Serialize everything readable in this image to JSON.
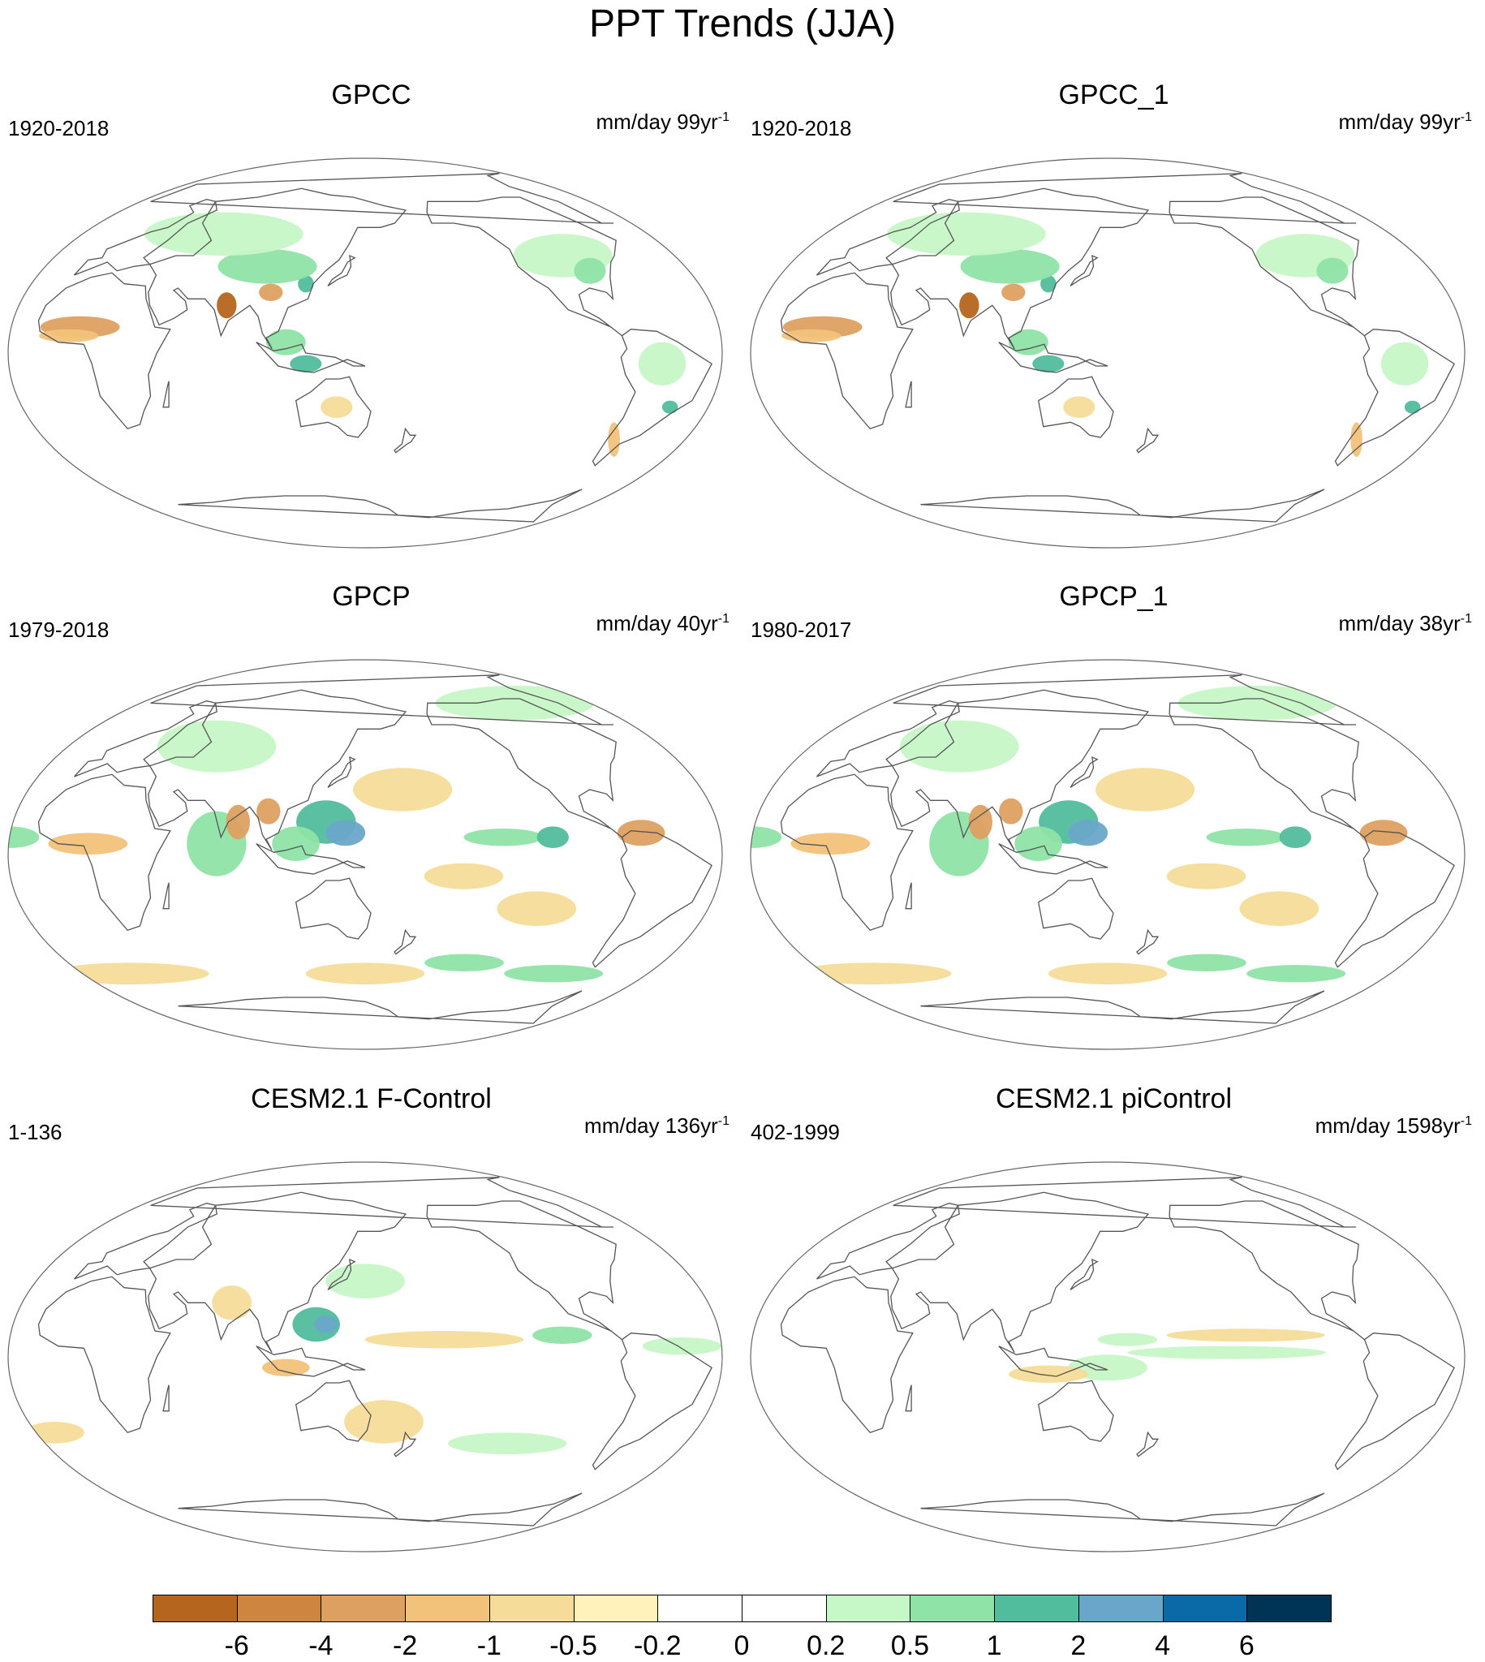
{
  "title": "PPT Trends (JJA)",
  "panels": [
    {
      "title": "GPCC",
      "period": "1920-2018",
      "units": "mm/day 99yr",
      "units_sup": "-1",
      "pattern": [
        {
          "lon": 100,
          "lat": 28,
          "rx": 6,
          "ry": 4,
          "cls": -3
        },
        {
          "lon": 78,
          "lat": 22,
          "rx": 5,
          "ry": 6,
          "cls": -4
        },
        {
          "lon": 118,
          "lat": 32,
          "rx": 4,
          "ry": 4,
          "cls": 3
        },
        {
          "lon": 95,
          "lat": 40,
          "rx": 25,
          "ry": 8,
          "cls": 2
        },
        {
          "lon": 110,
          "lat": 5,
          "rx": 10,
          "ry": 6,
          "cls": 2
        },
        {
          "lon": 120,
          "lat": -5,
          "rx": 8,
          "ry": 4,
          "cls": 3
        },
        {
          "lon": 60,
          "lat": 55,
          "rx": 40,
          "ry": 10,
          "cls": 1
        },
        {
          "lon": -95,
          "lat": 45,
          "rx": 25,
          "ry": 10,
          "cls": 1
        },
        {
          "lon": -85,
          "lat": 38,
          "rx": 8,
          "ry": 6,
          "cls": 2
        },
        {
          "lon": 5,
          "lat": 12,
          "rx": 20,
          "ry": 5,
          "cls": -3
        },
        {
          "lon": 0,
          "lat": 8,
          "rx": 15,
          "ry": 3,
          "cls": -2
        },
        {
          "lon": -60,
          "lat": -5,
          "rx": 12,
          "ry": 10,
          "cls": 1
        },
        {
          "lon": -50,
          "lat": -25,
          "rx": 4,
          "ry": 3,
          "cls": 3
        },
        {
          "lon": -70,
          "lat": -40,
          "rx": 3,
          "ry": 8,
          "cls": -2
        },
        {
          "lon": 135,
          "lat": -25,
          "rx": 8,
          "ry": 5,
          "cls": -1
        }
      ]
    },
    {
      "title": "GPCC_1",
      "period": "1920-2018",
      "units": "mm/day 99yr",
      "units_sup": "-1",
      "pattern": [
        {
          "lon": 100,
          "lat": 28,
          "rx": 6,
          "ry": 4,
          "cls": -3
        },
        {
          "lon": 78,
          "lat": 22,
          "rx": 5,
          "ry": 6,
          "cls": -4
        },
        {
          "lon": 118,
          "lat": 32,
          "rx": 4,
          "ry": 4,
          "cls": 3
        },
        {
          "lon": 95,
          "lat": 40,
          "rx": 25,
          "ry": 8,
          "cls": 2
        },
        {
          "lon": 110,
          "lat": 5,
          "rx": 10,
          "ry": 6,
          "cls": 2
        },
        {
          "lon": 120,
          "lat": -5,
          "rx": 8,
          "ry": 4,
          "cls": 3
        },
        {
          "lon": 60,
          "lat": 55,
          "rx": 40,
          "ry": 10,
          "cls": 1
        },
        {
          "lon": -95,
          "lat": 45,
          "rx": 25,
          "ry": 10,
          "cls": 1
        },
        {
          "lon": -85,
          "lat": 38,
          "rx": 8,
          "ry": 6,
          "cls": 2
        },
        {
          "lon": 5,
          "lat": 12,
          "rx": 20,
          "ry": 5,
          "cls": -3
        },
        {
          "lon": 0,
          "lat": 8,
          "rx": 15,
          "ry": 3,
          "cls": -2
        },
        {
          "lon": -60,
          "lat": -5,
          "rx": 12,
          "ry": 10,
          "cls": 1
        },
        {
          "lon": -50,
          "lat": -25,
          "rx": 4,
          "ry": 3,
          "cls": 3
        },
        {
          "lon": -70,
          "lat": -40,
          "rx": 3,
          "ry": 8,
          "cls": -2
        },
        {
          "lon": 135,
          "lat": -25,
          "rx": 8,
          "ry": 5,
          "cls": -1
        }
      ]
    },
    {
      "title": "GPCP",
      "period": "1979-2018",
      "units": "mm/day 40yr",
      "units_sup": "-1",
      "pattern": [
        {
          "lon": 75,
          "lat": 5,
          "rx": 15,
          "ry": 15,
          "cls": 2
        },
        {
          "lon": 85,
          "lat": 15,
          "rx": 6,
          "ry": 8,
          "cls": -3
        },
        {
          "lon": 100,
          "lat": 20,
          "rx": 6,
          "ry": 6,
          "cls": -3
        },
        {
          "lon": 130,
          "lat": 15,
          "rx": 15,
          "ry": 10,
          "cls": 3
        },
        {
          "lon": 115,
          "lat": 5,
          "rx": 12,
          "ry": 8,
          "cls": 2
        },
        {
          "lon": 140,
          "lat": 10,
          "rx": 10,
          "ry": 6,
          "cls": 4
        },
        {
          "lon": -140,
          "lat": 8,
          "rx": 20,
          "ry": 4,
          "cls": 2
        },
        {
          "lon": -115,
          "lat": 8,
          "rx": 8,
          "ry": 5,
          "cls": 3
        },
        {
          "lon": -70,
          "lat": 10,
          "rx": 12,
          "ry": 6,
          "cls": -3
        },
        {
          "lon": -30,
          "lat": 8,
          "rx": 15,
          "ry": 5,
          "cls": 2
        },
        {
          "lon": 10,
          "lat": 5,
          "rx": 20,
          "ry": 5,
          "cls": -2
        },
        {
          "lon": 170,
          "lat": 30,
          "rx": 25,
          "ry": 10,
          "cls": -1
        },
        {
          "lon": -160,
          "lat": -10,
          "rx": 20,
          "ry": 6,
          "cls": -1
        },
        {
          "lon": -120,
          "lat": -25,
          "rx": 20,
          "ry": 8,
          "cls": -1
        },
        {
          "lon": -150,
          "lat": -50,
          "rx": 20,
          "ry": 4,
          "cls": 2
        },
        {
          "lon": -90,
          "lat": -55,
          "rx": 25,
          "ry": 4,
          "cls": 2
        },
        {
          "lon": 150,
          "lat": -55,
          "rx": 30,
          "ry": 5,
          "cls": -1
        },
        {
          "lon": 0,
          "lat": -55,
          "rx": 40,
          "ry": 5,
          "cls": -1
        },
        {
          "lon": -90,
          "lat": 70,
          "rx": 40,
          "ry": 8,
          "cls": 1
        },
        {
          "lon": 60,
          "lat": 50,
          "rx": 30,
          "ry": 12,
          "cls": 1
        }
      ]
    },
    {
      "title": "GPCP_1",
      "period": "1980-2017",
      "units": "mm/day 38yr",
      "units_sup": "-1",
      "pattern": [
        {
          "lon": 75,
          "lat": 5,
          "rx": 15,
          "ry": 15,
          "cls": 2
        },
        {
          "lon": 85,
          "lat": 15,
          "rx": 6,
          "ry": 8,
          "cls": -3
        },
        {
          "lon": 100,
          "lat": 20,
          "rx": 6,
          "ry": 6,
          "cls": -3
        },
        {
          "lon": 130,
          "lat": 15,
          "rx": 15,
          "ry": 10,
          "cls": 3
        },
        {
          "lon": 115,
          "lat": 5,
          "rx": 12,
          "ry": 8,
          "cls": 2
        },
        {
          "lon": 140,
          "lat": 10,
          "rx": 10,
          "ry": 6,
          "cls": 4
        },
        {
          "lon": -140,
          "lat": 8,
          "rx": 20,
          "ry": 4,
          "cls": 2
        },
        {
          "lon": -115,
          "lat": 8,
          "rx": 8,
          "ry": 5,
          "cls": 3
        },
        {
          "lon": -70,
          "lat": 10,
          "rx": 12,
          "ry": 6,
          "cls": -3
        },
        {
          "lon": -30,
          "lat": 8,
          "rx": 15,
          "ry": 5,
          "cls": 2
        },
        {
          "lon": 10,
          "lat": 5,
          "rx": 20,
          "ry": 5,
          "cls": -2
        },
        {
          "lon": 170,
          "lat": 30,
          "rx": 25,
          "ry": 10,
          "cls": -1
        },
        {
          "lon": -160,
          "lat": -10,
          "rx": 20,
          "ry": 6,
          "cls": -1
        },
        {
          "lon": -120,
          "lat": -25,
          "rx": 20,
          "ry": 8,
          "cls": -1
        },
        {
          "lon": -150,
          "lat": -50,
          "rx": 20,
          "ry": 4,
          "cls": 2
        },
        {
          "lon": -90,
          "lat": -55,
          "rx": 25,
          "ry": 4,
          "cls": 2
        },
        {
          "lon": 150,
          "lat": -55,
          "rx": 30,
          "ry": 5,
          "cls": -1
        },
        {
          "lon": 0,
          "lat": -55,
          "rx": 40,
          "ry": 5,
          "cls": -1
        },
        {
          "lon": -90,
          "lat": 70,
          "rx": 40,
          "ry": 8,
          "cls": 1
        },
        {
          "lon": 60,
          "lat": 50,
          "rx": 30,
          "ry": 12,
          "cls": 1
        }
      ]
    },
    {
      "title": "CESM2.1 F-Control",
      "period": "1-136",
      "units": "mm/day 136yr",
      "units_sup": "-1",
      "pattern": [
        {
          "lon": 125,
          "lat": 15,
          "rx": 12,
          "ry": 8,
          "cls": 3
        },
        {
          "lon": 130,
          "lat": 15,
          "rx": 6,
          "ry": 4,
          "cls": 4
        },
        {
          "lon": 80,
          "lat": 25,
          "rx": 10,
          "ry": 8,
          "cls": -1
        },
        {
          "lon": 110,
          "lat": -5,
          "rx": 12,
          "ry": 4,
          "cls": -2
        },
        {
          "lon": -170,
          "lat": 8,
          "rx": 40,
          "ry": 4,
          "cls": -1
        },
        {
          "lon": -110,
          "lat": 10,
          "rx": 15,
          "ry": 4,
          "cls": 2
        },
        {
          "lon": -50,
          "lat": 5,
          "rx": 20,
          "ry": 4,
          "cls": 1
        },
        {
          "lon": 150,
          "lat": 35,
          "rx": 20,
          "ry": 8,
          "cls": 1
        },
        {
          "lon": 160,
          "lat": -30,
          "rx": 20,
          "ry": 10,
          "cls": -1
        },
        {
          "lon": -20,
          "lat": -35,
          "rx": 15,
          "ry": 5,
          "cls": -1
        },
        {
          "lon": -130,
          "lat": -40,
          "rx": 30,
          "ry": 5,
          "cls": 1
        }
      ]
    },
    {
      "title": "CESM2.1 piControl",
      "period": "402-1999",
      "units": "mm/day 1598yr",
      "units_sup": "-1",
      "pattern": [
        {
          "lon": -150,
          "lat": 2,
          "rx": 50,
          "ry": 3,
          "cls": 1
        },
        {
          "lon": -140,
          "lat": 10,
          "rx": 40,
          "ry": 3,
          "cls": -1
        },
        {
          "lon": 150,
          "lat": -5,
          "rx": 20,
          "ry": 6,
          "cls": 1
        },
        {
          "lon": 120,
          "lat": -8,
          "rx": 20,
          "ry": 4,
          "cls": -1
        },
        {
          "lon": 160,
          "lat": 8,
          "rx": 15,
          "ry": 3,
          "cls": 1
        }
      ]
    }
  ],
  "colorbar": {
    "labels": [
      "-6",
      "-4",
      "-2",
      "-1",
      "-0.5",
      "-0.2",
      "0",
      "0.2",
      "0.5",
      "1",
      "2",
      "4",
      "6"
    ],
    "colors": [
      "#b5651d",
      "#cd853f",
      "#dea060",
      "#f2c27a",
      "#f5dd99",
      "#fff2bb",
      "#ffffff",
      "#ffffff",
      "#c6f7c6",
      "#8fe3a6",
      "#52bd9c",
      "#6aa6c9",
      "#0a6aa8",
      "#003457"
    ]
  },
  "class_colors": {
    "-4": "#b5651d",
    "-3": "#dea060",
    "-2": "#f2c27a",
    "-1": "#f5dd99",
    "1": "#c6f7c6",
    "2": "#8fe3a6",
    "3": "#52bd9c",
    "4": "#6aa6c9"
  }
}
